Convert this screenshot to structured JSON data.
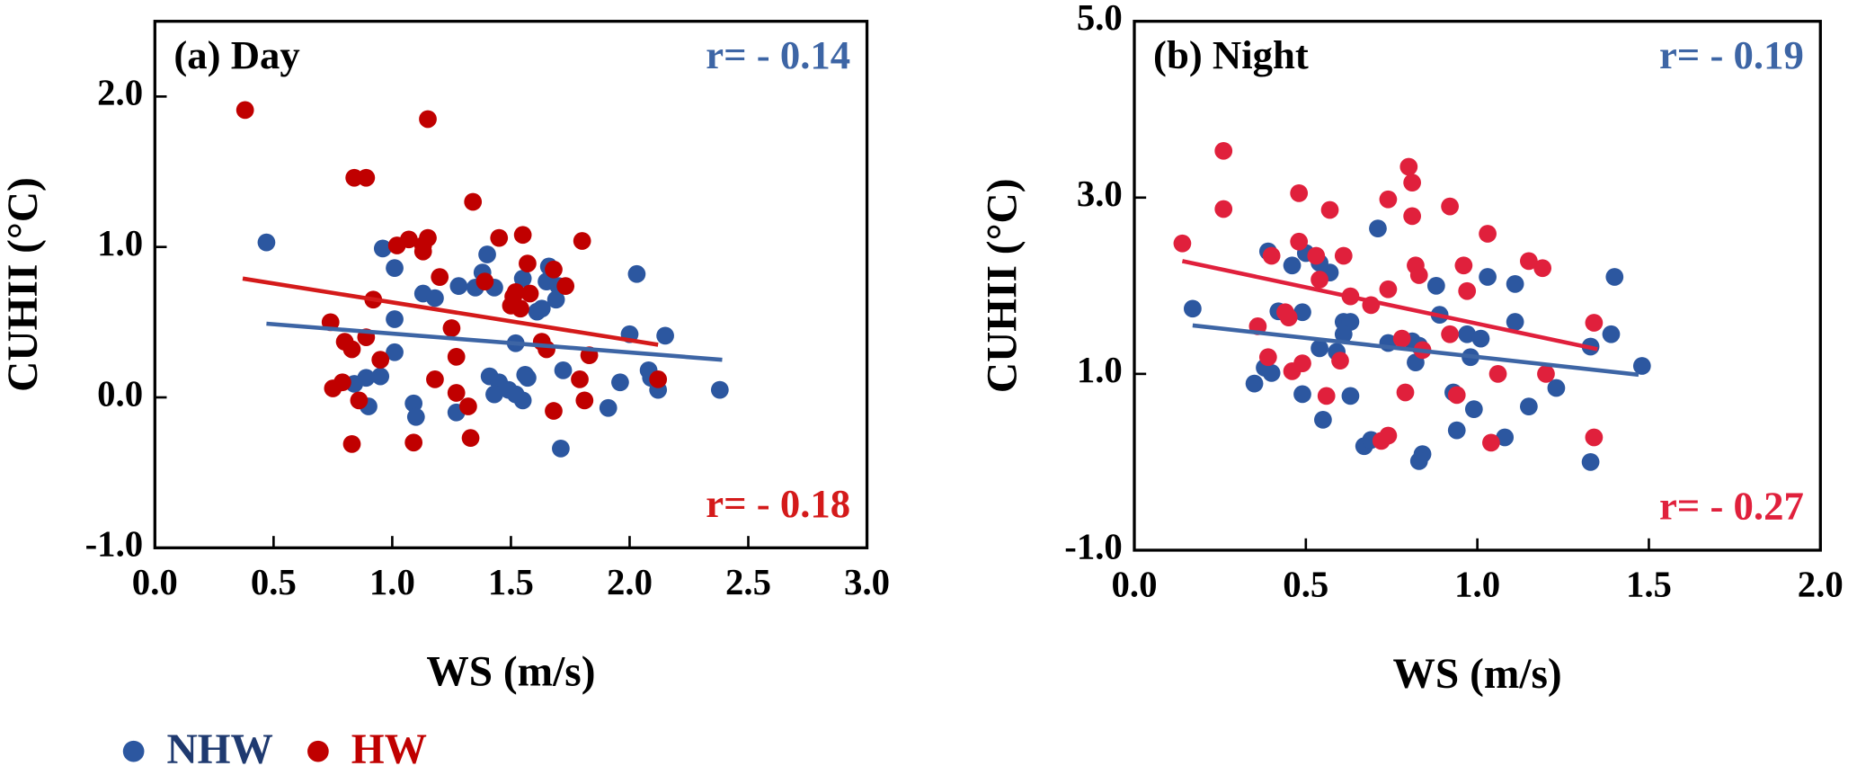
{
  "chart_data": [
    {
      "type": "scatter",
      "title": "(a) Day",
      "x_label": "WS (m/s)",
      "y_label": "CUHII (°C)",
      "xlim": [
        0,
        3
      ],
      "ylim": [
        -1,
        2.5
      ],
      "xticks": [
        {
          "value": 0,
          "label": "0.0"
        },
        0.5,
        {
          "value": 1,
          "label": "1.0"
        },
        1.5,
        {
          "value": 2,
          "label": "2.0"
        },
        2.5,
        {
          "value": 3,
          "label": "3.0"
        }
      ],
      "yticks": [
        {
          "value": -1,
          "label": "-1.0"
        },
        {
          "value": 0,
          "label": "0.0"
        },
        {
          "value": 1,
          "label": "1.0"
        },
        {
          "value": 2,
          "label": "2.0"
        }
      ],
      "legend": "bottom-left",
      "series": [
        {
          "name": "NHW",
          "color": "#2c57a0",
          "line_color": "#3d65a5",
          "r_label": "r= - 0.14",
          "x": [
            0.47,
            0.96,
            1.01,
            1.01,
            1.01,
            0.95,
            0.89,
            0.84,
            0.9,
            1.09,
            1.1,
            1.13,
            1.18,
            1.28,
            1.27,
            1.35,
            1.38,
            1.4,
            1.43,
            1.41,
            1.45,
            1.43,
            1.49,
            1.52,
            1.55,
            1.56,
            1.57,
            1.52,
            1.61,
            1.63,
            1.65,
            1.66,
            1.69,
            1.7,
            1.72,
            1.71,
            1.91,
            1.96,
            2.0,
            2.03,
            2.08,
            2.09,
            2.12,
            2.15,
            2.38,
            1.55
          ],
          "values": [
            1.03,
            0.99,
            0.86,
            0.52,
            0.3,
            0.14,
            0.13,
            0.09,
            -0.06,
            -0.04,
            -0.13,
            0.69,
            0.66,
            0.74,
            -0.1,
            0.73,
            0.83,
            0.95,
            0.73,
            0.14,
            0.1,
            0.02,
            0.05,
            0.02,
            0.79,
            0.15,
            0.13,
            0.36,
            0.57,
            0.59,
            0.77,
            0.87,
            0.65,
            0.74,
            0.18,
            -0.34,
            -0.07,
            0.1,
            0.42,
            0.82,
            0.18,
            0.13,
            0.05,
            0.41,
            0.05,
            -0.02
          ],
          "fit": {
            "x": [
              0.47,
              2.39
            ],
            "y": [
              0.49,
              0.25
            ]
          }
        },
        {
          "name": "HW",
          "color": "#c00000",
          "line_color": "#d41a1a",
          "r_label": "r= - 0.18",
          "x": [
            0.38,
            0.84,
            0.89,
            1.15,
            1.2,
            1.02,
            1.07,
            1.13,
            1.15,
            1.13,
            0.92,
            0.74,
            0.8,
            0.83,
            0.89,
            0.95,
            0.75,
            0.79,
            0.86,
            0.83,
            1.09,
            1.25,
            1.27,
            1.27,
            1.18,
            1.34,
            1.32,
            1.33,
            1.45,
            1.39,
            1.5,
            1.51,
            1.54,
            1.52,
            1.55,
            1.57,
            1.58,
            1.63,
            1.65,
            1.68,
            1.73,
            1.68,
            1.79,
            1.8,
            1.83,
            1.81,
            2.12
          ],
          "values": [
            1.91,
            1.46,
            1.46,
            1.85,
            0.8,
            1.01,
            1.05,
            0.97,
            1.06,
            1.01,
            0.65,
            0.5,
            0.37,
            0.32,
            0.4,
            0.25,
            0.06,
            0.1,
            -0.02,
            -0.31,
            -0.3,
            0.46,
            0.27,
            0.03,
            0.12,
            1.3,
            -0.06,
            -0.27,
            1.06,
            0.77,
            0.61,
            0.67,
            0.59,
            0.7,
            1.08,
            0.89,
            0.69,
            0.37,
            0.32,
            0.85,
            0.74,
            -0.09,
            0.12,
            1.04,
            0.28,
            -0.02,
            0.12
          ],
          "fit": {
            "x": [
              0.37,
              2.12
            ],
            "y": [
              0.79,
              0.35
            ]
          }
        }
      ]
    },
    {
      "type": "scatter",
      "title": "(b) Night",
      "x_label": "WS (m/s)",
      "y_label": "CUHII (°C)",
      "xlim": [
        0,
        2
      ],
      "ylim": [
        -1,
        5
      ],
      "xticks": [
        {
          "value": 0,
          "label": "0.0"
        },
        0.5,
        {
          "value": 1,
          "label": "1.0"
        },
        1.5,
        {
          "value": 2,
          "label": "2.0"
        }
      ],
      "yticks": [
        {
          "value": -1,
          "label": "-1.0"
        },
        {
          "value": 1,
          "label": "1.0"
        },
        {
          "value": 3,
          "label": "3.0"
        },
        {
          "value": 5,
          "label": "5.0"
        }
      ],
      "series": [
        {
          "name": "NHW",
          "color": "#2c57a0",
          "line_color": "#3d65a5",
          "r_label": "r= - 0.19",
          "x": [
            0.17,
            0.39,
            0.35,
            0.38,
            0.4,
            0.42,
            0.46,
            0.49,
            0.49,
            0.5,
            0.54,
            0.54,
            0.55,
            0.57,
            0.59,
            0.61,
            0.63,
            0.61,
            0.63,
            0.67,
            0.69,
            0.71,
            0.74,
            0.81,
            0.82,
            0.83,
            0.84,
            0.83,
            0.88,
            0.89,
            0.93,
            0.94,
            0.97,
            0.98,
            0.99,
            1.01,
            1.03,
            1.08,
            1.11,
            1.11,
            1.15,
            1.23,
            1.33,
            1.33,
            1.39,
            1.4,
            1.48
          ],
          "values": [
            1.74,
            2.39,
            0.89,
            1.07,
            1.01,
            1.71,
            2.23,
            1.7,
            0.77,
            2.37,
            2.26,
            1.29,
            0.48,
            2.15,
            1.25,
            1.59,
            1.59,
            1.45,
            0.75,
            0.18,
            0.25,
            2.65,
            1.35,
            1.37,
            1.13,
            1.32,
            0.09,
            0.01,
            2.0,
            1.67,
            0.79,
            0.36,
            1.45,
            1.19,
            0.6,
            1.4,
            2.1,
            0.28,
            1.59,
            2.02,
            0.63,
            0.84,
            1.31,
            0.0,
            1.45,
            2.1,
            1.09
          ],
          "fit": {
            "x": [
              0.17,
              1.47
            ],
            "y": [
              1.55,
              0.99
            ]
          }
        },
        {
          "name": "HW",
          "color": "#e0203c",
          "line_color": "#e0203c",
          "r_label": "r= - 0.27",
          "x": [
            0.14,
            0.26,
            0.26,
            0.36,
            0.39,
            0.4,
            0.44,
            0.45,
            0.46,
            0.48,
            0.48,
            0.49,
            0.53,
            0.54,
            0.56,
            0.57,
            0.6,
            0.61,
            0.63,
            0.69,
            0.74,
            0.74,
            0.74,
            0.72,
            0.78,
            0.79,
            0.8,
            0.81,
            0.81,
            0.82,
            0.83,
            0.84,
            0.92,
            0.92,
            0.94,
            0.96,
            0.97,
            1.03,
            1.04,
            1.06,
            1.15,
            1.19,
            1.2,
            1.34,
            1.34
          ],
          "values": [
            2.48,
            3.53,
            2.87,
            1.54,
            1.19,
            2.34,
            1.7,
            1.64,
            1.03,
            2.5,
            3.05,
            1.12,
            2.34,
            2.07,
            0.75,
            2.86,
            1.15,
            2.34,
            1.88,
            1.78,
            1.96,
            2.98,
            0.3,
            0.24,
            1.4,
            0.79,
            3.35,
            3.17,
            2.79,
            2.23,
            2.12,
            1.27,
            2.9,
            1.45,
            0.76,
            2.23,
            1.94,
            2.59,
            0.22,
            1.0,
            2.28,
            2.2,
            1.0,
            1.58,
            0.28
          ],
          "fit": {
            "x": [
              0.14,
              1.35
            ],
            "y": [
              2.28,
              1.28
            ]
          }
        }
      ]
    }
  ]
}
